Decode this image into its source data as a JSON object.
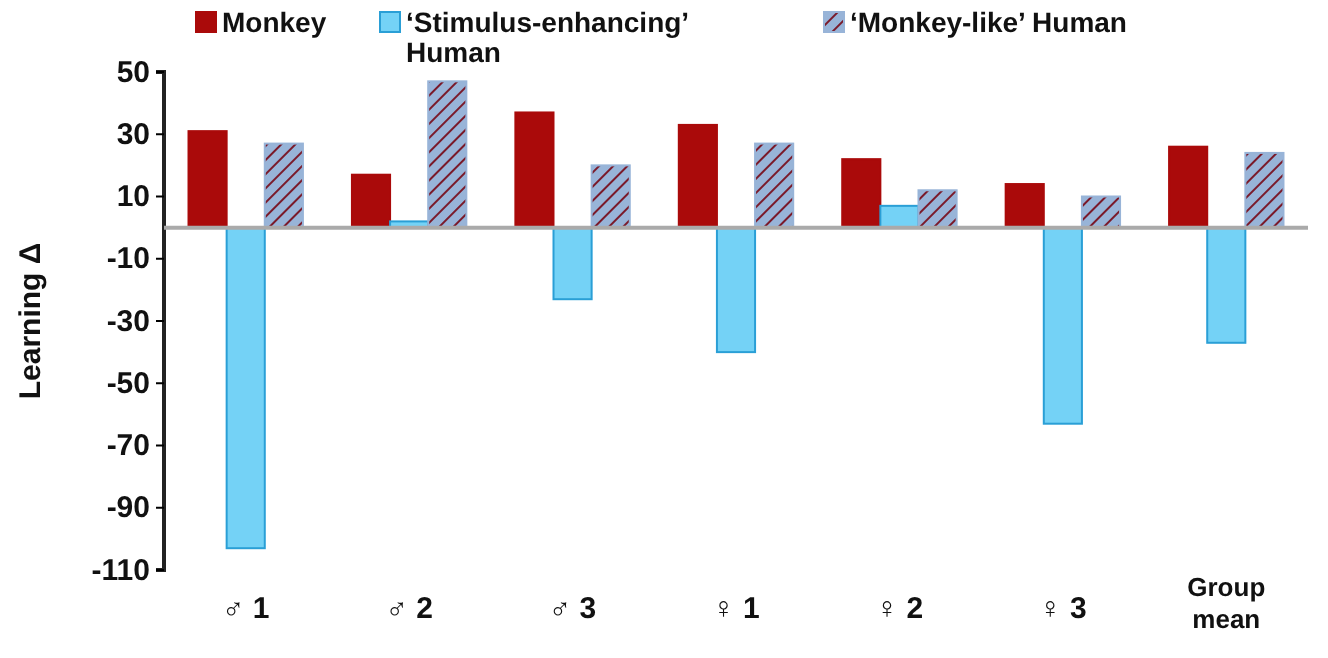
{
  "chart_data": {
    "type": "bar",
    "ylabel": "Learning Δ",
    "categories": [
      "♂ 1",
      "♂ 2",
      "♂ 3",
      "♀ 1",
      "♀ 2",
      "♀ 3",
      "Group mean"
    ],
    "series": [
      {
        "name": "Monkey",
        "color": "#aa0a0a",
        "values": [
          31,
          17,
          37,
          33,
          22,
          14,
          26
        ]
      },
      {
        "name": "‘Stimulus-enhancing’ Human",
        "color": "#74d2f6",
        "values": [
          -103,
          2,
          -23,
          -40,
          7,
          -63,
          -37
        ]
      },
      {
        "name": "‘Monkey-like’ Human",
        "color": "#98b4d8",
        "values": [
          27,
          47,
          20,
          27,
          12,
          10,
          24
        ]
      }
    ],
    "ylim": [
      -110,
      50
    ],
    "yticks": [
      -110,
      -90,
      -70,
      -50,
      -30,
      -10,
      10,
      30,
      50
    ],
    "grid": false,
    "legend": "top"
  }
}
